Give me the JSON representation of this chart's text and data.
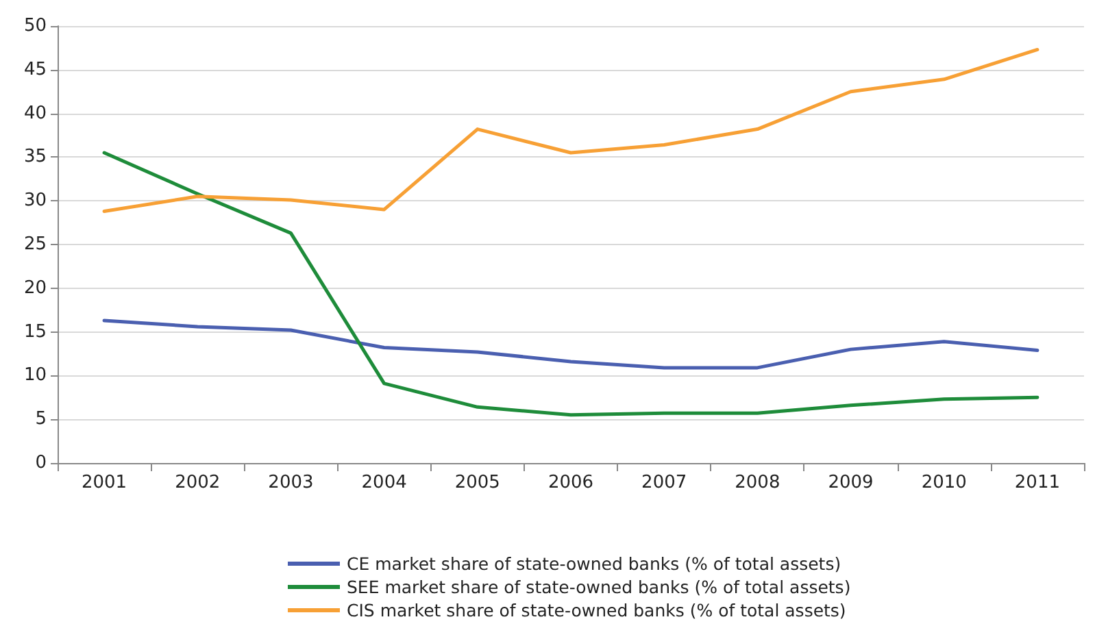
{
  "chart_data": {
    "type": "line",
    "categories": [
      "2001",
      "2002",
      "2003",
      "2004",
      "2005",
      "2006",
      "2007",
      "2008",
      "2009",
      "2010",
      "2011"
    ],
    "series": [
      {
        "name": "CE market share of state-owned banks (% of total assets)",
        "color": "#4a5fb0",
        "values": [
          16.3,
          15.6,
          15.2,
          13.2,
          12.7,
          11.6,
          10.9,
          10.9,
          13.0,
          13.9,
          12.9
        ]
      },
      {
        "name": "SEE market share of state-owned banks (% of total assets)",
        "color": "#1e8c3a",
        "values": [
          35.5,
          30.8,
          26.3,
          9.1,
          6.4,
          5.5,
          5.7,
          5.7,
          6.6,
          7.3,
          7.5
        ]
      },
      {
        "name": "CIS market share of state-owned banks (% of total assets)",
        "color": "#f7a035",
        "values": [
          28.8,
          30.5,
          30.1,
          29.0,
          38.2,
          35.5,
          36.4,
          38.2,
          42.5,
          43.9,
          47.3
        ]
      }
    ],
    "ylim": [
      0,
      50
    ],
    "yticks": [
      0,
      5,
      10,
      15,
      20,
      25,
      30,
      35,
      40,
      45,
      50
    ],
    "grid": "y",
    "legend": "bottom",
    "marker": "none",
    "line_style": "solid"
  }
}
